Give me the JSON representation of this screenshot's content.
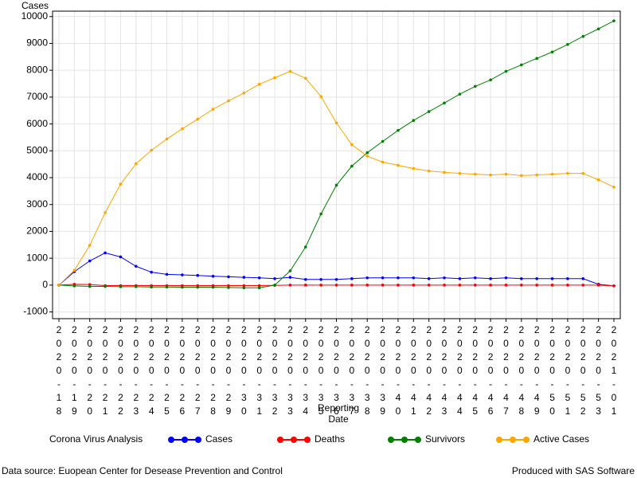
{
  "chart_data": {
    "type": "line",
    "y_label": "Cases",
    "x_label": "Reporting Date",
    "legend_title": "Corona Virus Analysis",
    "footnote_left": "Data source: Euopean Center for Desease Prevention and Control",
    "footnote_right": "Produced with SAS Software",
    "categories": [
      "2020-18",
      "2020-19",
      "2020-20",
      "2020-21",
      "2020-22",
      "2020-23",
      "2020-24",
      "2020-25",
      "2020-26",
      "2020-27",
      "2020-28",
      "2020-29",
      "2020-30",
      "2020-31",
      "2020-32",
      "2020-33",
      "2020-34",
      "2020-35",
      "2020-36",
      "2020-37",
      "2020-38",
      "2020-39",
      "2020-40",
      "2020-41",
      "2020-42",
      "2020-43",
      "2020-44",
      "2020-45",
      "2020-46",
      "2020-47",
      "2020-48",
      "2020-49",
      "2020-50",
      "2020-51",
      "2020-52",
      "2020-53",
      "2021-01"
    ],
    "series": [
      {
        "name": "Cases",
        "color": "#0000ff",
        "values": [
          0,
          500,
          900,
          1200,
          1050,
          700,
          480,
          400,
          380,
          360,
          330,
          310,
          290,
          270,
          240,
          290,
          210,
          210,
          210,
          240,
          270,
          270,
          270,
          270,
          240,
          270,
          240,
          270,
          240,
          270,
          240,
          240,
          240,
          240,
          240,
          30,
          -30
        ]
      },
      {
        "name": "Deaths",
        "color": "#ff0000",
        "values": [
          0,
          30,
          20,
          -20,
          -20,
          -20,
          -20,
          -20,
          -20,
          -20,
          -20,
          -20,
          -20,
          -20,
          -10,
          0,
          0,
          0,
          0,
          0,
          0,
          0,
          0,
          0,
          0,
          0,
          0,
          0,
          0,
          0,
          0,
          0,
          0,
          0,
          0,
          0,
          -30
        ]
      },
      {
        "name": "Survivors",
        "color": "#008000",
        "values": [
          0,
          -30,
          -50,
          -50,
          -60,
          -60,
          -70,
          -70,
          -80,
          -80,
          -80,
          -90,
          -100,
          -100,
          0,
          530,
          1420,
          2650,
          3720,
          4430,
          4930,
          5350,
          5760,
          6130,
          6460,
          6780,
          7110,
          7400,
          7640,
          7960,
          8200,
          8440,
          8680,
          8960,
          9260,
          9540,
          9840
        ]
      },
      {
        "name": "Active Cases",
        "color": "#ffa500",
        "values": [
          0,
          550,
          1480,
          2700,
          3760,
          4520,
          5020,
          5440,
          5820,
          6180,
          6550,
          6860,
          7150,
          7480,
          7720,
          7960,
          7700,
          7020,
          6040,
          5230,
          4800,
          4580,
          4460,
          4340,
          4250,
          4200,
          4160,
          4130,
          4100,
          4130,
          4080,
          4100,
          4130,
          4160,
          4160,
          3920,
          3650
        ]
      }
    ],
    "ylim": [
      -1250,
      10200
    ],
    "yticks": [
      -1000,
      0,
      1000,
      2000,
      3000,
      4000,
      5000,
      6000,
      7000,
      8000,
      9000,
      10000
    ],
    "grid": true
  }
}
